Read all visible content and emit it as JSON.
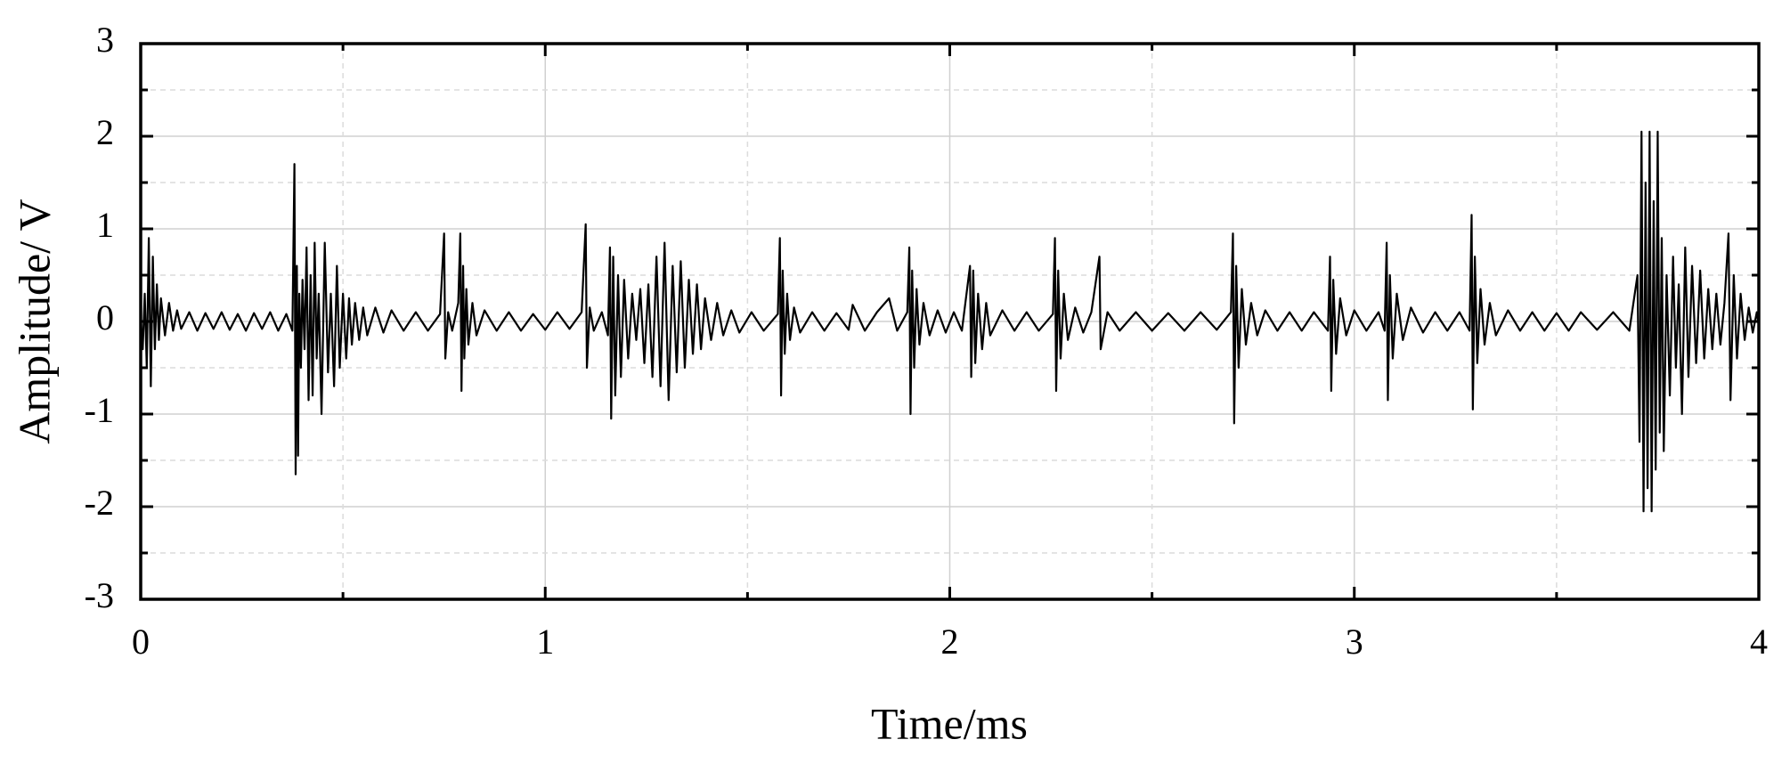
{
  "chart_data": {
    "type": "line",
    "xlabel": "Time/ms",
    "ylabel": "Amplitude/ V",
    "color": "#000000",
    "xlim": [
      0,
      4
    ],
    "ylim": [
      -3,
      3
    ],
    "xticks": [
      0,
      1,
      2,
      3,
      4
    ],
    "yticks": [
      -3,
      -2,
      -1,
      0,
      1,
      2,
      3
    ],
    "xminorticks": [
      0.5,
      1.5,
      2.5,
      3.5
    ],
    "yminorticks": [
      -2.5,
      -1.5,
      -0.5,
      0.5,
      1.5,
      2.5
    ],
    "grid": true,
    "x": [
      0,
      0.005,
      0.01,
      0.015,
      0.02,
      0.025,
      0.03,
      0.035,
      0.04,
      0.045,
      0.05,
      0.06,
      0.07,
      0.08,
      0.09,
      0.1,
      0.12,
      0.14,
      0.16,
      0.18,
      0.2,
      0.22,
      0.24,
      0.26,
      0.28,
      0.3,
      0.32,
      0.34,
      0.36,
      0.375,
      0.38,
      0.383,
      0.386,
      0.389,
      0.392,
      0.396,
      0.4,
      0.405,
      0.41,
      0.415,
      0.42,
      0.425,
      0.43,
      0.435,
      0.44,
      0.447,
      0.455,
      0.463,
      0.47,
      0.478,
      0.485,
      0.492,
      0.5,
      0.508,
      0.515,
      0.522,
      0.53,
      0.54,
      0.55,
      0.56,
      0.58,
      0.6,
      0.62,
      0.65,
      0.68,
      0.71,
      0.74,
      0.75,
      0.753,
      0.76,
      0.77,
      0.785,
      0.79,
      0.793,
      0.797,
      0.8,
      0.805,
      0.81,
      0.82,
      0.83,
      0.85,
      0.88,
      0.91,
      0.94,
      0.97,
      1.0,
      1.03,
      1.06,
      1.09,
      1.1,
      1.103,
      1.11,
      1.12,
      1.14,
      1.155,
      1.16,
      1.163,
      1.168,
      1.173,
      1.18,
      1.187,
      1.195,
      1.205,
      1.215,
      1.225,
      1.235,
      1.245,
      1.255,
      1.265,
      1.275,
      1.285,
      1.295,
      1.305,
      1.315,
      1.325,
      1.335,
      1.345,
      1.355,
      1.365,
      1.375,
      1.385,
      1.395,
      1.41,
      1.425,
      1.44,
      1.46,
      1.48,
      1.51,
      1.54,
      1.575,
      1.58,
      1.583,
      1.587,
      1.592,
      1.598,
      1.605,
      1.615,
      1.63,
      1.66,
      1.69,
      1.72,
      1.75,
      1.76,
      1.79,
      1.82,
      1.85,
      1.87,
      1.895,
      1.9,
      1.903,
      1.907,
      1.912,
      1.918,
      1.925,
      1.935,
      1.95,
      1.97,
      1.99,
      2.01,
      2.03,
      2.05,
      2.053,
      2.058,
      2.063,
      2.07,
      2.08,
      2.09,
      2.1,
      2.13,
      2.16,
      2.19,
      2.22,
      2.255,
      2.26,
      2.263,
      2.268,
      2.274,
      2.282,
      2.292,
      2.31,
      2.33,
      2.35,
      2.37,
      2.373,
      2.39,
      2.42,
      2.46,
      2.5,
      2.54,
      2.58,
      2.62,
      2.66,
      2.695,
      2.7,
      2.703,
      2.708,
      2.714,
      2.722,
      2.732,
      2.745,
      2.76,
      2.78,
      2.81,
      2.84,
      2.87,
      2.9,
      2.935,
      2.94,
      2.943,
      2.948,
      2.955,
      2.965,
      2.98,
      3.0,
      3.03,
      3.06,
      3.075,
      3.08,
      3.083,
      3.088,
      3.095,
      3.105,
      3.12,
      3.14,
      3.17,
      3.2,
      3.23,
      3.26,
      3.285,
      3.29,
      3.293,
      3.298,
      3.304,
      3.312,
      3.322,
      3.335,
      3.35,
      3.38,
      3.41,
      3.44,
      3.47,
      3.5,
      3.53,
      3.56,
      3.6,
      3.64,
      3.68,
      3.7,
      3.705,
      3.71,
      3.715,
      3.72,
      3.725,
      3.73,
      3.735,
      3.74,
      3.745,
      3.75,
      3.755,
      3.76,
      3.765,
      3.772,
      3.78,
      3.788,
      3.795,
      3.802,
      3.81,
      3.818,
      3.826,
      3.835,
      3.845,
      3.855,
      3.865,
      3.875,
      3.885,
      3.895,
      3.905,
      3.915,
      3.925,
      3.93,
      3.938,
      3.946,
      3.955,
      3.965,
      3.975,
      3.985,
      3.995,
      4.0
    ],
    "values": [
      0.05,
      -0.3,
      0.3,
      -0.5,
      0.9,
      -0.7,
      0.7,
      -0.3,
      0.4,
      -0.2,
      0.25,
      -0.15,
      0.2,
      -0.1,
      0.12,
      -0.08,
      0.1,
      -0.1,
      0.09,
      -0.08,
      0.1,
      -0.09,
      0.08,
      -0.1,
      0.09,
      -0.08,
      0.1,
      -0.1,
      0.08,
      -0.1,
      1.7,
      -1.65,
      0.6,
      -1.45,
      0.3,
      -0.5,
      0.45,
      -0.3,
      0.8,
      -0.85,
      0.5,
      -0.8,
      0.85,
      -0.4,
      0.3,
      -1.0,
      0.85,
      -0.55,
      0.3,
      -0.7,
      0.6,
      -0.5,
      0.3,
      -0.4,
      0.25,
      -0.25,
      0.2,
      -0.2,
      0.15,
      -0.15,
      0.15,
      -0.12,
      0.12,
      -0.1,
      0.1,
      -0.1,
      0.08,
      0.95,
      -0.4,
      0.1,
      -0.1,
      0.2,
      0.95,
      -0.75,
      0.6,
      -0.4,
      0.35,
      -0.25,
      0.2,
      -0.15,
      0.12,
      -0.1,
      0.1,
      -0.1,
      0.08,
      -0.09,
      0.1,
      -0.08,
      0.1,
      1.05,
      -0.5,
      0.15,
      -0.1,
      0.1,
      -0.15,
      0.8,
      -1.05,
      0.7,
      -0.8,
      0.5,
      -0.6,
      0.45,
      -0.4,
      0.3,
      -0.2,
      0.35,
      -0.45,
      0.4,
      -0.6,
      0.7,
      -0.7,
      0.85,
      -0.85,
      0.6,
      -0.55,
      0.65,
      -0.5,
      0.45,
      -0.35,
      0.4,
      -0.3,
      0.25,
      -0.2,
      0.2,
      -0.15,
      0.12,
      -0.12,
      0.1,
      -0.1,
      0.08,
      0.9,
      -0.8,
      0.55,
      -0.35,
      0.3,
      -0.2,
      0.15,
      -0.12,
      0.1,
      -0.1,
      0.09,
      -0.09,
      0.18,
      -0.1,
      0.1,
      0.25,
      -0.1,
      0.1,
      0.8,
      -1.0,
      0.55,
      -0.5,
      0.35,
      -0.25,
      0.2,
      -0.15,
      0.12,
      -0.12,
      0.1,
      -0.1,
      0.6,
      -0.6,
      0.55,
      -0.45,
      0.3,
      -0.3,
      0.2,
      -0.15,
      0.12,
      -0.1,
      0.1,
      -0.1,
      0.08,
      0.9,
      -0.75,
      0.55,
      -0.4,
      0.3,
      -0.2,
      0.15,
      -0.12,
      0.1,
      0.7,
      -0.3,
      0.1,
      -0.1,
      0.1,
      -0.1,
      0.09,
      -0.1,
      0.1,
      -0.09,
      0.1,
      0.95,
      -1.1,
      0.6,
      -0.5,
      0.35,
      -0.25,
      0.2,
      -0.15,
      0.12,
      -0.1,
      0.1,
      -0.1,
      0.1,
      -0.1,
      0.7,
      -0.75,
      0.45,
      -0.35,
      0.25,
      -0.15,
      0.12,
      -0.1,
      0.1,
      -0.1,
      0.85,
      -0.85,
      0.5,
      -0.4,
      0.3,
      -0.2,
      0.15,
      -0.12,
      0.1,
      -0.1,
      0.1,
      -0.1,
      1.15,
      -0.95,
      0.7,
      -0.45,
      0.35,
      -0.25,
      0.2,
      -0.15,
      0.12,
      -0.1,
      0.1,
      -0.1,
      0.09,
      -0.1,
      0.1,
      -0.09,
      0.1,
      -0.1,
      0.5,
      -1.3,
      2.05,
      -2.05,
      1.5,
      -1.8,
      2.05,
      -2.05,
      1.3,
      -1.6,
      2.05,
      -1.2,
      0.9,
      -1.4,
      0.5,
      -0.8,
      0.7,
      -0.5,
      0.4,
      -1.0,
      0.8,
      -0.6,
      0.6,
      -0.45,
      0.55,
      -0.4,
      0.35,
      -0.3,
      0.3,
      -0.25,
      0.2,
      0.95,
      -0.85,
      0.5,
      -0.4,
      0.3,
      -0.2,
      0.15,
      -0.12,
      0.1,
      -0.05
    ]
  }
}
